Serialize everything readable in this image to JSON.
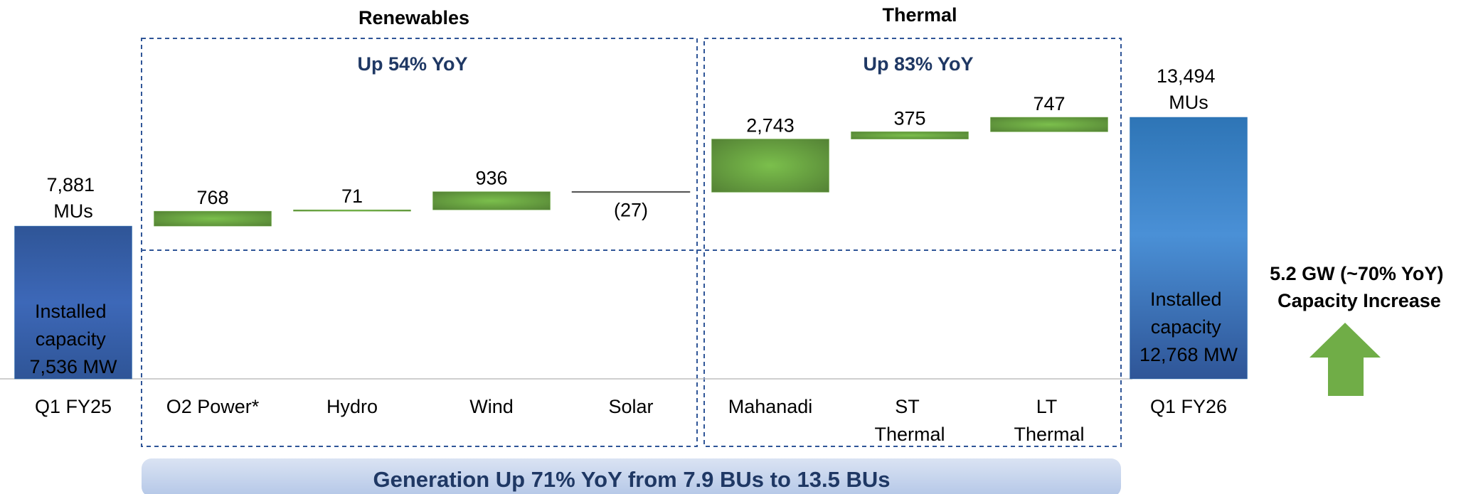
{
  "chart_data": {
    "type": "waterfall",
    "categories": [
      "Q1 FY25",
      "O2 Power*",
      "Hydro",
      "Wind",
      "Solar",
      "Mahanadi",
      "ST\nThermal",
      "LT\nThermal",
      "Q1 FY26"
    ],
    "values": [
      7881,
      768,
      71,
      936,
      -27,
      2743,
      375,
      747,
      13494
    ],
    "value_labels": [
      "7,881\nMUs",
      "768",
      "71",
      "936",
      "(27)",
      "2,743",
      "375",
      "747",
      "13,494\nMUs"
    ],
    "colors": {
      "total": "#2e75b6",
      "increase": "#70ad47",
      "decrease": "#595959"
    },
    "groups": [
      {
        "title": "Renewables",
        "note": "Up 54% YoY"
      },
      {
        "title": "Thermal",
        "note": "Up  83% YoY"
      }
    ],
    "start_note": "Installed\ncapacity\n7,536 MW",
    "end_note": "Installed\ncapacity\n12,768 MW",
    "side_note": "5.2 GW (~70% YoY)\nCapacity Increase",
    "banner": "Generation Up 71% YoY from 7.9 BUs to 13.5 BUs"
  }
}
